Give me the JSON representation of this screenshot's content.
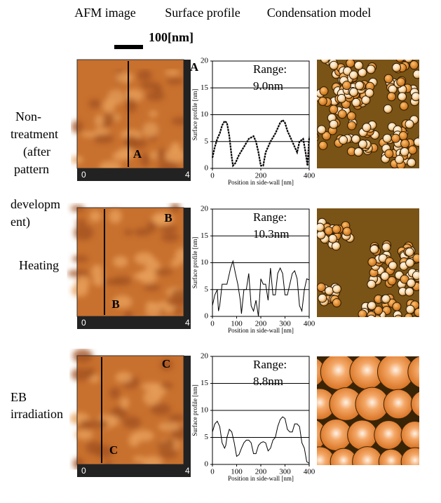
{
  "headers": [
    "AFM  image",
    "Surface profile",
    "Condensation model"
  ],
  "scale_bar": "100[nm]",
  "row_labels": [
    [
      "Non-",
      "treatment",
      "(after",
      "pattern",
      "developm",
      "ent)"
    ],
    [
      "Heating"
    ],
    [
      "EB",
      "irradiation"
    ]
  ],
  "afm": [
    {
      "axis_start": "0",
      "axis_end": "4",
      "marker": "A"
    },
    {
      "axis_start": "0",
      "axis_end": "4",
      "marker": "B"
    },
    {
      "axis_start": "0",
      "axis_end": "4",
      "marker": "C"
    }
  ],
  "chart_data": [
    {
      "type": "line",
      "range_title": "Range:",
      "range_value": "9.0nm",
      "ylabel": "Surface profile [nm]",
      "xlabel": "Position in side-wall [nm]",
      "color": "#000000",
      "xlim": [
        0,
        400
      ],
      "xticks": [
        0,
        200,
        400
      ],
      "ylim": [
        0,
        20
      ],
      "yticks": [
        0,
        5,
        10,
        15,
        20
      ],
      "grid": true,
      "x": [
        0,
        10,
        20,
        30,
        40,
        50,
        60,
        70,
        80,
        85,
        95,
        110,
        130,
        150,
        170,
        180,
        190,
        200,
        210,
        220,
        240,
        260,
        280,
        290,
        300,
        310,
        330,
        345,
        350,
        360,
        375,
        385,
        393,
        400
      ],
      "values": [
        2,
        4,
        5.5,
        6.5,
        8,
        8.8,
        8.5,
        6,
        2,
        0.5,
        1,
        2.5,
        4,
        5.5,
        6,
        5,
        3,
        0.5,
        0.5,
        3,
        5,
        6.5,
        8.5,
        9,
        8.5,
        7,
        5,
        3.5,
        3,
        5,
        5.5,
        3,
        0.5,
        5.8
      ]
    },
    {
      "type": "line",
      "range_title": "Range:",
      "range_value": "10.3nm",
      "ylabel": "Surface profile [nm]",
      "xlabel": "Position in side-wall [nm]",
      "color": "#000000",
      "xlim": [
        0,
        400
      ],
      "xticks": [
        0,
        100,
        200,
        300,
        400
      ],
      "ylim": [
        0,
        20
      ],
      "yticks": [
        0,
        5,
        10,
        15,
        20
      ],
      "grid": true,
      "x": [
        0,
        10,
        20,
        25,
        30,
        40,
        60,
        75,
        85,
        95,
        105,
        115,
        120,
        130,
        140,
        150,
        160,
        170,
        180,
        190,
        200,
        210,
        220,
        230,
        240,
        250,
        260,
        270,
        280,
        290,
        300,
        310,
        320,
        330,
        340,
        350,
        360,
        370,
        380,
        390,
        400
      ],
      "values": [
        2,
        4,
        5,
        1,
        2,
        6,
        6,
        9,
        10.3,
        8,
        6,
        3,
        0.5,
        5,
        5,
        8,
        2,
        1,
        3,
        0,
        7,
        6,
        6,
        3,
        9,
        4,
        4,
        8,
        9,
        8,
        4,
        4,
        6,
        8,
        8.5,
        7,
        2,
        1,
        5,
        7,
        6.8
      ]
    },
    {
      "type": "line",
      "range_title": "Range:",
      "range_value": "8.8nm",
      "ylabel": "Surface profile [nm]",
      "xlabel": "Position in side-wall [nm]",
      "color": "#000000",
      "xlim": [
        0,
        400
      ],
      "xticks": [
        0,
        100,
        200,
        300,
        400
      ],
      "ylim": [
        0,
        20
      ],
      "yticks": [
        0,
        5,
        10,
        15,
        20
      ],
      "grid": true,
      "x": [
        0,
        10,
        20,
        30,
        40,
        50,
        55,
        60,
        70,
        80,
        90,
        100,
        110,
        120,
        130,
        140,
        150,
        160,
        170,
        180,
        190,
        200,
        210,
        220,
        230,
        240,
        250,
        260,
        270,
        280,
        290,
        300,
        310,
        320,
        330,
        340,
        350,
        360,
        370,
        380,
        390,
        400
      ],
      "values": [
        6,
        7.5,
        8,
        7,
        4,
        3,
        3.5,
        5,
        6.5,
        6,
        4,
        1.5,
        1.8,
        3,
        4,
        4.5,
        4.5,
        4,
        2,
        2,
        3.5,
        4,
        4.2,
        4,
        2.5,
        3,
        4.5,
        5,
        7,
        8.3,
        8.8,
        8.5,
        6.5,
        6,
        6,
        7.5,
        7.5,
        7,
        4,
        3,
        0.5,
        0.2
      ]
    }
  ]
}
